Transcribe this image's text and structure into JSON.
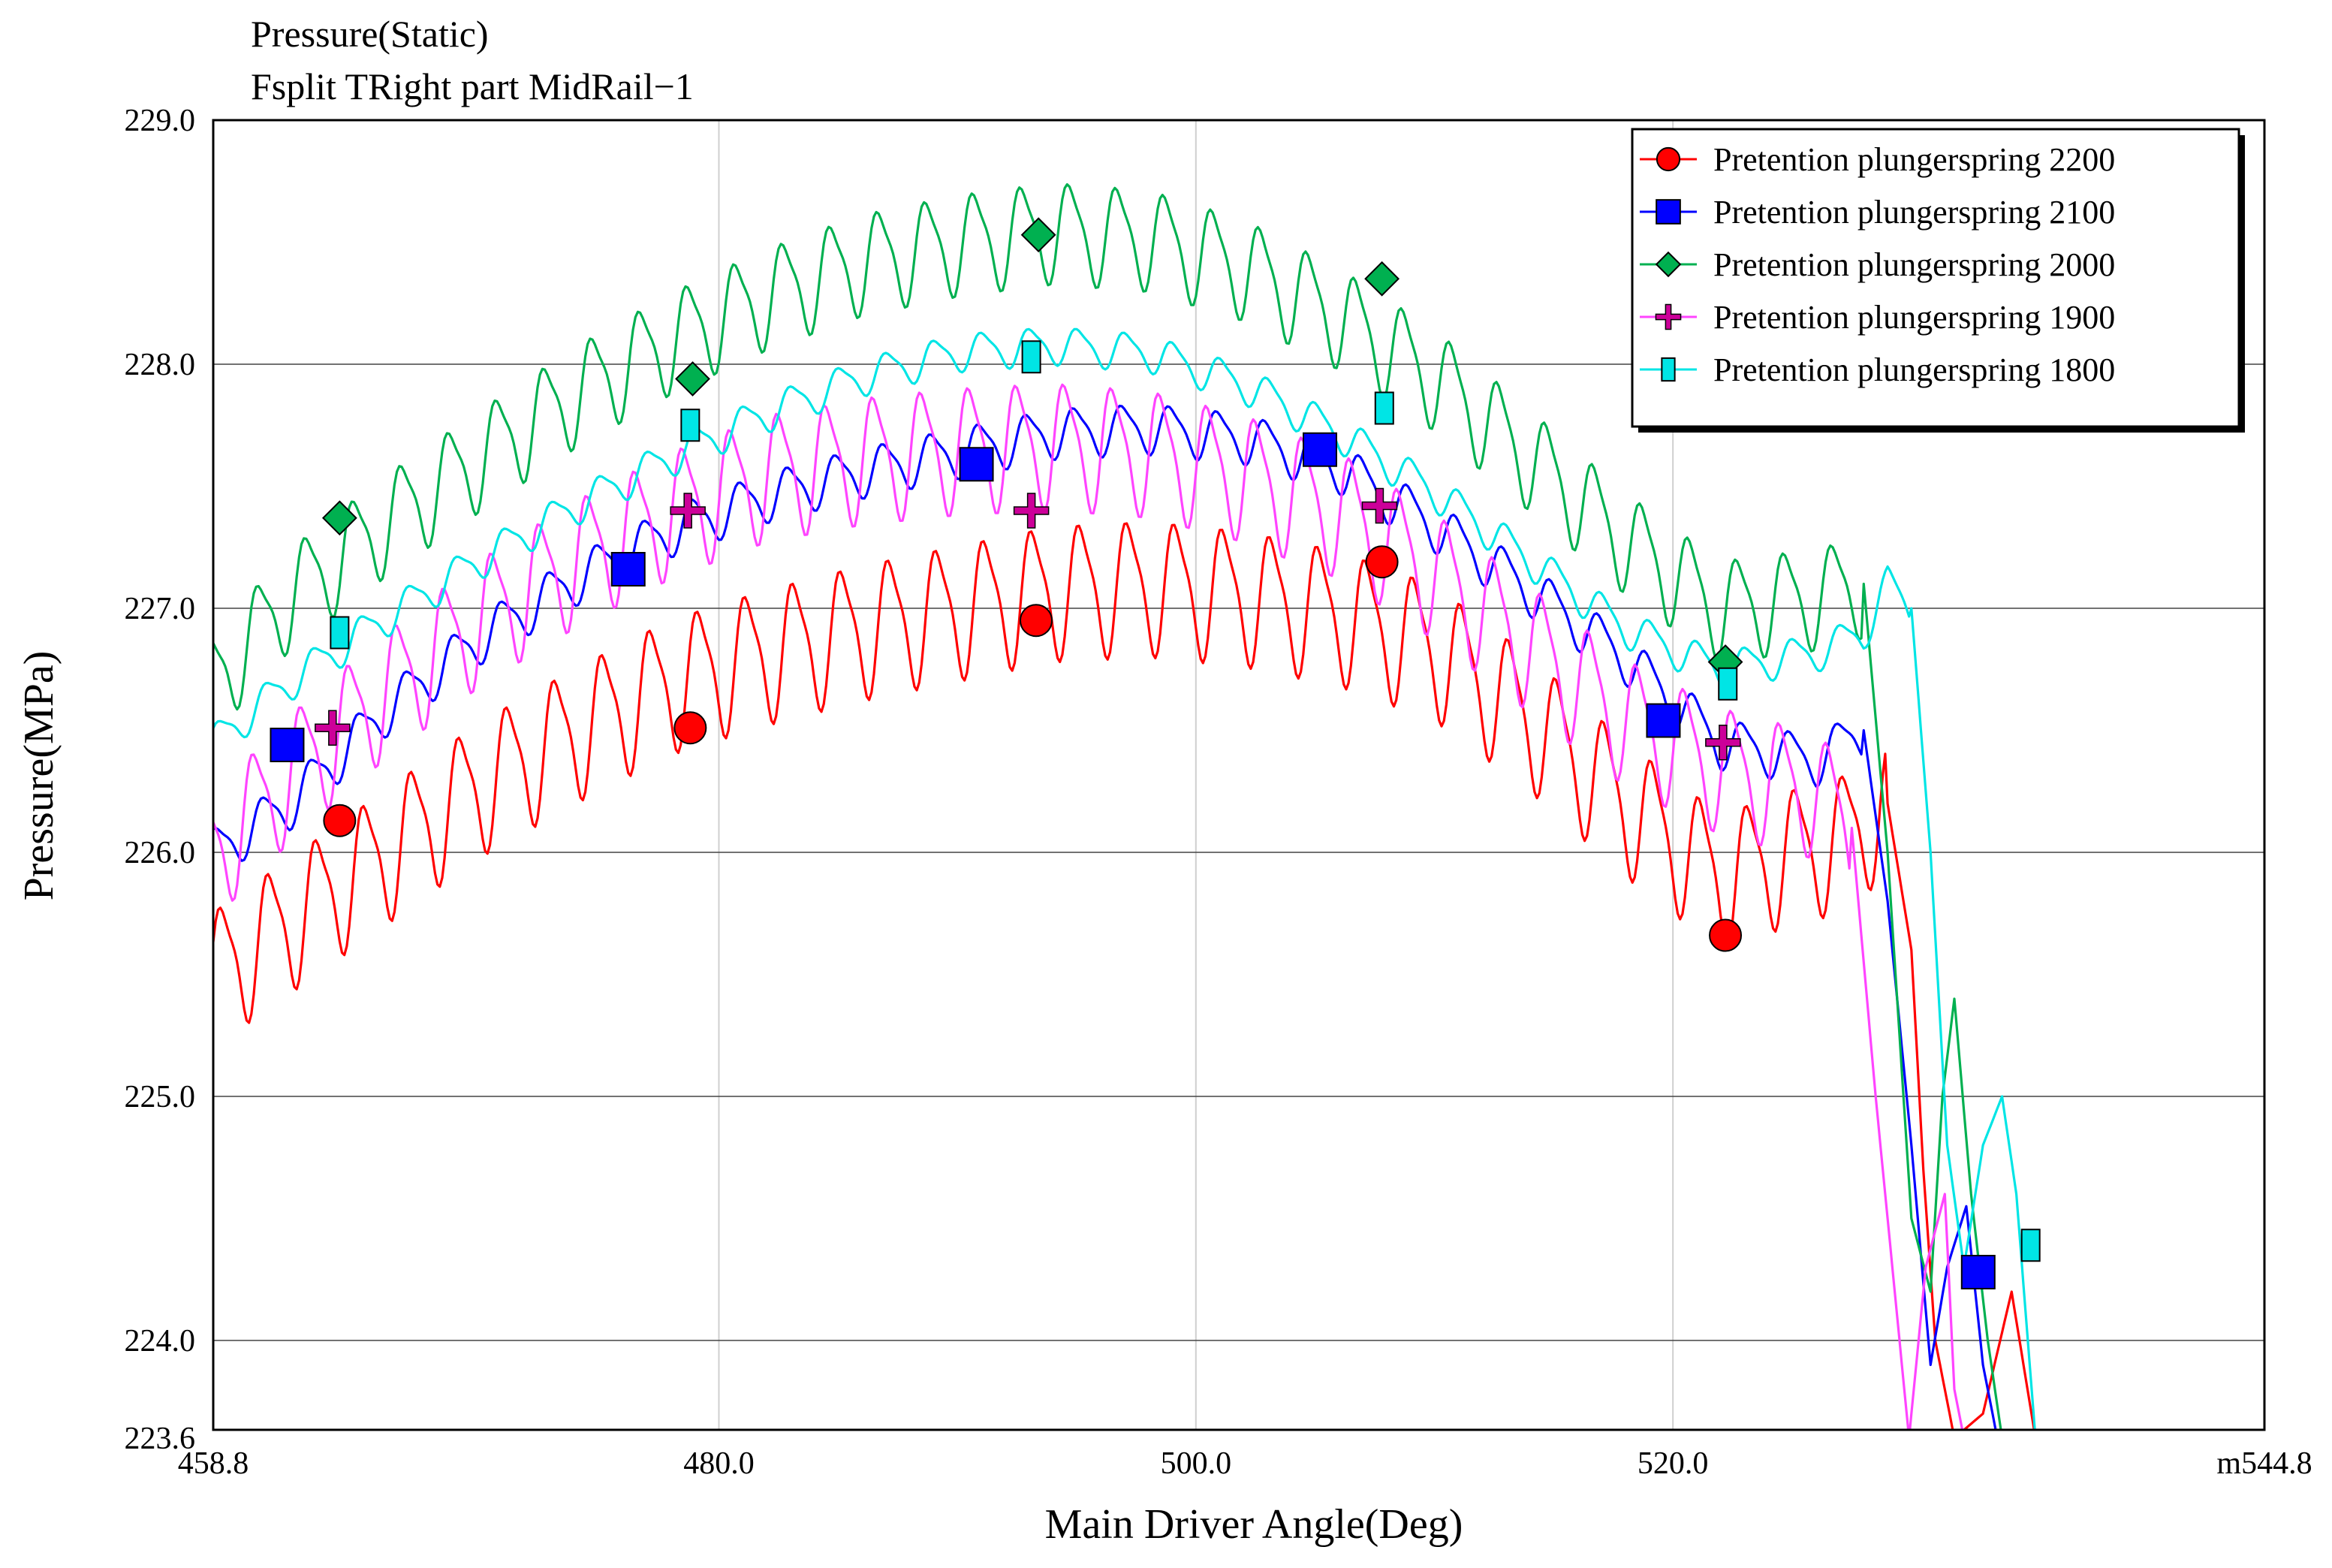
{
  "chart_data": {
    "type": "line",
    "title": "Pressure(Static)",
    "subtitle": "Fsplit TRight part MidRail−1",
    "xlabel": "Main Driver Angle(Deg)",
    "ylabel": "Pressure(MPa)",
    "xlim": [
      458.8,
      544.8
    ],
    "ylim": [
      223.6,
      229.0
    ],
    "x_ticks": [
      458.8,
      480.0,
      500.0,
      520.0,
      544.8
    ],
    "x_tick_labels": [
      "458.8",
      "480.0",
      "500.0",
      "520.0",
      "m544.8"
    ],
    "y_ticks": [
      229.0,
      228.0,
      227.0,
      226.0,
      225.0,
      224.0,
      223.6
    ],
    "y_tick_labels": [
      "229.0",
      "228.0",
      "227.0",
      "226.0",
      "225.0",
      "224.0",
      "223.6"
    ],
    "grid": true,
    "legend_position": "top-right",
    "osc_period": 2.0,
    "series": [
      {
        "name": "Pretention plungerspring 2200",
        "color": "#ff0000",
        "marker": "circle",
        "marker_color": "#ff0000",
        "amplitude": 0.32,
        "phase": 0.3,
        "envelope": [
          [
            458.8,
            225.5
          ],
          [
            462,
            225.72
          ],
          [
            466,
            226.0
          ],
          [
            470,
            226.28
          ],
          [
            474,
            226.5
          ],
          [
            478,
            226.7
          ],
          [
            482,
            226.82
          ],
          [
            486,
            226.92
          ],
          [
            490,
            227.0
          ],
          [
            494,
            227.08
          ],
          [
            498,
            227.1
          ],
          [
            502,
            227.06
          ],
          [
            506,
            226.98
          ],
          [
            510,
            226.84
          ],
          [
            514,
            226.55
          ],
          [
            518,
            226.2
          ],
          [
            522,
            225.9
          ],
          [
            525,
            226.0
          ],
          [
            527,
            226.05
          ],
          [
            529,
            226.2
          ],
          [
            530,
            225.6
          ],
          [
            530.5,
            224.7
          ],
          [
            531,
            224.0
          ],
          [
            531.8,
            223.6
          ],
          [
            533,
            223.7
          ],
          [
            534.2,
            224.2
          ],
          [
            534.7,
            223.9
          ],
          [
            535.2,
            223.6
          ]
        ],
        "markers": [
          [
            464.1,
            226.13
          ],
          [
            478.8,
            226.51
          ],
          [
            493.3,
            226.95
          ],
          [
            507.8,
            227.19
          ],
          [
            522.2,
            225.66
          ]
        ]
      },
      {
        "name": "Pretention plungerspring 2100",
        "color": "#0000ff",
        "marker": "square",
        "marker_color": "#0000ff",
        "amplitude": 0.12,
        "phase": 1.0,
        "envelope": [
          [
            458.8,
            226.0
          ],
          [
            462,
            226.2
          ],
          [
            466,
            226.58
          ],
          [
            470,
            226.88
          ],
          [
            474,
            227.12
          ],
          [
            478,
            227.32
          ],
          [
            482,
            227.46
          ],
          [
            486,
            227.56
          ],
          [
            490,
            227.64
          ],
          [
            494,
            227.72
          ],
          [
            498,
            227.74
          ],
          [
            502,
            227.7
          ],
          [
            506,
            227.58
          ],
          [
            510,
            227.34
          ],
          [
            514,
            227.08
          ],
          [
            518,
            226.8
          ],
          [
            522,
            226.45
          ],
          [
            526,
            226.38
          ],
          [
            528,
            226.5
          ],
          [
            529,
            225.8
          ],
          [
            530,
            224.8
          ],
          [
            530.8,
            223.9
          ],
          [
            531.5,
            224.3
          ],
          [
            532.3,
            224.55
          ],
          [
            533,
            223.9
          ],
          [
            533.6,
            223.6
          ]
        ],
        "markers": [
          [
            461.9,
            226.44
          ],
          [
            476.2,
            227.16
          ],
          [
            490.8,
            227.59
          ],
          [
            505.2,
            227.65
          ],
          [
            519.6,
            226.54
          ],
          [
            532.8,
            224.28
          ]
        ]
      },
      {
        "name": "Pretention plungerspring 2000",
        "color": "#00b050",
        "marker": "diamond",
        "marker_color": "#00b050",
        "amplitude": 0.24,
        "phase": 1.7,
        "envelope": [
          [
            458.8,
            226.7
          ],
          [
            462,
            227.05
          ],
          [
            466,
            227.35
          ],
          [
            470,
            227.62
          ],
          [
            474,
            227.88
          ],
          [
            478,
            228.1
          ],
          [
            482,
            228.28
          ],
          [
            486,
            228.42
          ],
          [
            490,
            228.5
          ],
          [
            494,
            228.55
          ],
          [
            498,
            228.52
          ],
          [
            502,
            228.4
          ],
          [
            506,
            228.2
          ],
          [
            510,
            227.95
          ],
          [
            514,
            227.62
          ],
          [
            518,
            227.28
          ],
          [
            522,
            227.0
          ],
          [
            526,
            227.05
          ],
          [
            528,
            227.1
          ],
          [
            529,
            226.0
          ],
          [
            530,
            224.5
          ],
          [
            530.8,
            224.2
          ],
          [
            531.3,
            225.0
          ],
          [
            531.8,
            225.4
          ],
          [
            532.5,
            224.6
          ],
          [
            533.2,
            224.0
          ],
          [
            533.8,
            223.6
          ]
        ],
        "markers": [
          [
            464.1,
            227.37
          ],
          [
            478.9,
            227.94
          ],
          [
            493.4,
            228.53
          ],
          [
            507.8,
            228.35
          ],
          [
            522.2,
            226.78
          ]
        ]
      },
      {
        "name": "Pretention plungerspring 1900",
        "color": "#ff44ff",
        "marker": "plus",
        "marker_color": "#cc0099",
        "amplitude": 0.3,
        "phase": 2.3,
        "envelope": [
          [
            458.8,
            226.0
          ],
          [
            462,
            226.32
          ],
          [
            466,
            226.66
          ],
          [
            470,
            226.96
          ],
          [
            474,
            227.2
          ],
          [
            478,
            227.4
          ],
          [
            482,
            227.55
          ],
          [
            486,
            227.62
          ],
          [
            490,
            227.66
          ],
          [
            494,
            227.68
          ],
          [
            498,
            227.65
          ],
          [
            502,
            227.55
          ],
          [
            506,
            227.4
          ],
          [
            510,
            227.15
          ],
          [
            514,
            226.85
          ],
          [
            518,
            226.55
          ],
          [
            522,
            226.35
          ],
          [
            526,
            226.25
          ],
          [
            527.5,
            226.1
          ],
          [
            528.5,
            225.0
          ],
          [
            529.5,
            224.0
          ],
          [
            529.9,
            223.6
          ],
          [
            530.6,
            224.3
          ],
          [
            531.4,
            224.6
          ],
          [
            531.8,
            223.8
          ],
          [
            532.2,
            223.6
          ]
        ],
        "markers": [
          [
            463.8,
            226.51
          ],
          [
            478.7,
            227.4
          ],
          [
            493.1,
            227.4
          ],
          [
            507.7,
            227.42
          ],
          [
            522.1,
            226.45
          ]
        ]
      },
      {
        "name": "Pretention plungerspring 1800",
        "color": "#00e5e5",
        "marker": "tallrect",
        "marker_color": "#00e5e5",
        "amplitude": 0.09,
        "phase": 0.6,
        "envelope": [
          [
            458.8,
            226.45
          ],
          [
            462,
            226.7
          ],
          [
            466,
            226.96
          ],
          [
            470,
            227.2
          ],
          [
            474,
            227.42
          ],
          [
            478,
            227.62
          ],
          [
            482,
            227.8
          ],
          [
            486,
            227.95
          ],
          [
            490,
            228.05
          ],
          [
            494,
            228.08
          ],
          [
            498,
            228.05
          ],
          [
            502,
            227.92
          ],
          [
            506,
            227.72
          ],
          [
            510,
            227.48
          ],
          [
            514,
            227.2
          ],
          [
            518,
            226.92
          ],
          [
            522,
            226.75
          ],
          [
            526,
            226.82
          ],
          [
            528,
            226.9
          ],
          [
            529,
            227.1
          ],
          [
            530,
            227.0
          ],
          [
            530.8,
            226.0
          ],
          [
            531.5,
            224.8
          ],
          [
            532.2,
            224.3
          ],
          [
            533,
            224.8
          ],
          [
            533.8,
            225.0
          ],
          [
            534.4,
            224.6
          ],
          [
            535.2,
            223.6
          ]
        ],
        "markers": [
          [
            464.1,
            226.9
          ],
          [
            478.8,
            227.75
          ],
          [
            493.1,
            228.03
          ],
          [
            507.9,
            227.82
          ],
          [
            522.3,
            226.69
          ],
          [
            535.0,
            224.39
          ]
        ]
      }
    ]
  }
}
